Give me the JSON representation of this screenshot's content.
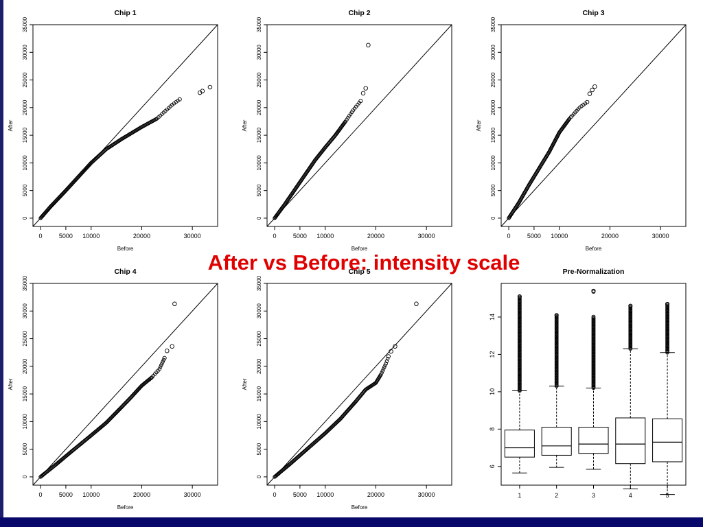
{
  "slide": {
    "headline": "After vs Before: intensity scale",
    "colors": {
      "background": "#ffffff",
      "frame": "#1d1d6e",
      "bar": "#08086a",
      "headline": "#e00000"
    }
  },
  "chart_data": [
    {
      "type": "scatter",
      "title": "Chip 1",
      "xlabel": "Before",
      "ylabel": "After",
      "xlim": [
        -1500,
        35000
      ],
      "ylim": [
        -1500,
        35000
      ],
      "xticks": [
        0,
        5000,
        10000,
        20000,
        30000
      ],
      "xtick_labels": [
        "0",
        "5000",
        "10000",
        "20000",
        "30000"
      ],
      "yticks": [
        0,
        5000,
        10000,
        15000,
        20000,
        25000,
        30000,
        35000
      ],
      "ytick_labels": [
        "0",
        "5000",
        "10000",
        "15000",
        "20000",
        "25000",
        "30000",
        "35000"
      ],
      "reference_line": "y = x",
      "curve": [
        [
          0,
          0
        ],
        [
          2000,
          2100
        ],
        [
          5000,
          5000
        ],
        [
          8000,
          8000
        ],
        [
          10000,
          10000
        ],
        [
          13000,
          12500
        ],
        [
          16000,
          14300
        ],
        [
          20000,
          16500
        ],
        [
          23000,
          18000
        ],
        [
          26000,
          20500
        ],
        [
          27500,
          21500
        ]
      ],
      "outliers": [
        [
          31500,
          22700
        ],
        [
          32000,
          23000
        ],
        [
          33500,
          23700
        ]
      ]
    },
    {
      "type": "scatter",
      "title": "Chip 2",
      "xlabel": "Before",
      "ylabel": "After",
      "xlim": [
        -1500,
        35000
      ],
      "ylim": [
        -1500,
        35000
      ],
      "xticks": [
        0,
        5000,
        10000,
        20000,
        30000
      ],
      "xtick_labels": [
        "0",
        "5000",
        "10000",
        "20000",
        "30000"
      ],
      "yticks": [
        0,
        5000,
        10000,
        15000,
        20000,
        25000,
        30000,
        35000
      ],
      "ytick_labels": [
        "0",
        "5000",
        "10000",
        "15000",
        "20000",
        "25000",
        "30000",
        "35000"
      ],
      "reference_line": "y = x",
      "curve": [
        [
          0,
          0
        ],
        [
          2000,
          2500
        ],
        [
          5000,
          6500
        ],
        [
          8000,
          10500
        ],
        [
          10000,
          12800
        ],
        [
          12000,
          15000
        ],
        [
          14000,
          17500
        ],
        [
          15500,
          19500
        ],
        [
          17000,
          21200
        ]
      ],
      "outliers": [
        [
          17500,
          22600
        ],
        [
          18000,
          23500
        ],
        [
          18500,
          31300
        ]
      ]
    },
    {
      "type": "scatter",
      "title": "Chip 3",
      "xlabel": "Before",
      "ylabel": "After",
      "xlim": [
        -1500,
        35000
      ],
      "ylim": [
        -1500,
        35000
      ],
      "xticks": [
        0,
        5000,
        10000,
        20000,
        30000
      ],
      "xtick_labels": [
        "0",
        "5000",
        "10000",
        "20000",
        "30000"
      ],
      "yticks": [
        0,
        5000,
        10000,
        15000,
        20000,
        25000,
        30000,
        35000
      ],
      "ytick_labels": [
        "0",
        "5000",
        "10000",
        "15000",
        "20000",
        "25000",
        "30000",
        "35000"
      ],
      "reference_line": "y = x",
      "curve": [
        [
          0,
          0
        ],
        [
          2000,
          2800
        ],
        [
          4000,
          6000
        ],
        [
          6000,
          9000
        ],
        [
          8000,
          12000
        ],
        [
          10000,
          15500
        ],
        [
          12000,
          18000
        ],
        [
          14000,
          20000
        ],
        [
          15500,
          21000
        ]
      ],
      "outliers": [
        [
          16000,
          22500
        ],
        [
          16500,
          23200
        ],
        [
          17000,
          23800
        ]
      ]
    },
    {
      "type": "scatter",
      "title": "Chip 4",
      "xlabel": "Before",
      "ylabel": "After",
      "xlim": [
        -1500,
        35000
      ],
      "ylim": [
        -1500,
        35000
      ],
      "xticks": [
        0,
        5000,
        10000,
        20000,
        30000
      ],
      "xtick_labels": [
        "0",
        "5000",
        "10000",
        "20000",
        "30000"
      ],
      "yticks": [
        0,
        5000,
        10000,
        15000,
        20000,
        25000,
        30000,
        35000
      ],
      "ytick_labels": [
        "0",
        "5000",
        "10000",
        "15000",
        "20000",
        "25000",
        "30000",
        "35000"
      ],
      "reference_line": "y = x",
      "curve": [
        [
          0,
          0
        ],
        [
          3000,
          2200
        ],
        [
          6000,
          4500
        ],
        [
          10000,
          7500
        ],
        [
          13000,
          9800
        ],
        [
          16000,
          12600
        ],
        [
          18000,
          14500
        ],
        [
          20000,
          16500
        ],
        [
          22000,
          18000
        ],
        [
          23500,
          19500
        ],
        [
          24500,
          21500
        ]
      ],
      "outliers": [
        [
          25000,
          22800
        ],
        [
          26000,
          23600
        ],
        [
          26500,
          31300
        ]
      ]
    },
    {
      "type": "scatter",
      "title": "Chip 5",
      "xlabel": "Before",
      "ylabel": "After",
      "xlim": [
        -1500,
        35000
      ],
      "ylim": [
        -1500,
        35000
      ],
      "xticks": [
        0,
        5000,
        10000,
        20000,
        30000
      ],
      "xtick_labels": [
        "0",
        "5000",
        "10000",
        "20000",
        "30000"
      ],
      "yticks": [
        0,
        5000,
        10000,
        15000,
        20000,
        25000,
        30000,
        35000
      ],
      "ytick_labels": [
        "0",
        "5000",
        "10000",
        "15000",
        "20000",
        "25000",
        "30000",
        "35000"
      ],
      "reference_line": "y = x",
      "curve": [
        [
          0,
          0
        ],
        [
          3000,
          2300
        ],
        [
          6000,
          4700
        ],
        [
          10000,
          7900
        ],
        [
          13000,
          10500
        ],
        [
          16000,
          13600
        ],
        [
          18000,
          15800
        ],
        [
          20000,
          17000
        ],
        [
          21000,
          18500
        ],
        [
          22000,
          20500
        ],
        [
          22500,
          21800
        ]
      ],
      "outliers": [
        [
          23000,
          22700
        ],
        [
          23800,
          23600
        ],
        [
          28000,
          31300
        ]
      ]
    },
    {
      "type": "box",
      "title": "Pre-Normalization",
      "xlabel": "",
      "ylabel": "",
      "categories": [
        "1",
        "2",
        "3",
        "4",
        "5"
      ],
      "ylim": [
        5,
        15.8
      ],
      "yticks": [
        6,
        8,
        10,
        12,
        14
      ],
      "ytick_labels": [
        "6",
        "8",
        "10",
        "12",
        "14"
      ],
      "boxes": [
        {
          "label": "1",
          "whisker_low": 5.65,
          "q1": 6.5,
          "median": 7.0,
          "q3": 7.95,
          "whisker_high": 10.05,
          "outlier_top": 15.1
        },
        {
          "label": "2",
          "whisker_low": 5.95,
          "q1": 6.6,
          "median": 7.1,
          "q3": 8.1,
          "whisker_high": 10.3,
          "outlier_top": 14.1
        },
        {
          "label": "3",
          "whisker_low": 5.85,
          "q1": 6.7,
          "median": 7.2,
          "q3": 8.1,
          "whisker_high": 10.2,
          "outlier_top": 15.4
        },
        {
          "label": "4",
          "whisker_low": 4.8,
          "q1": 6.15,
          "median": 7.2,
          "q3": 8.6,
          "whisker_high": 12.3,
          "outlier_top": 14.6
        },
        {
          "label": "5",
          "whisker_low": 4.5,
          "q1": 6.25,
          "median": 7.3,
          "q3": 8.55,
          "whisker_high": 12.1,
          "outlier_top": 14.7
        }
      ]
    }
  ]
}
